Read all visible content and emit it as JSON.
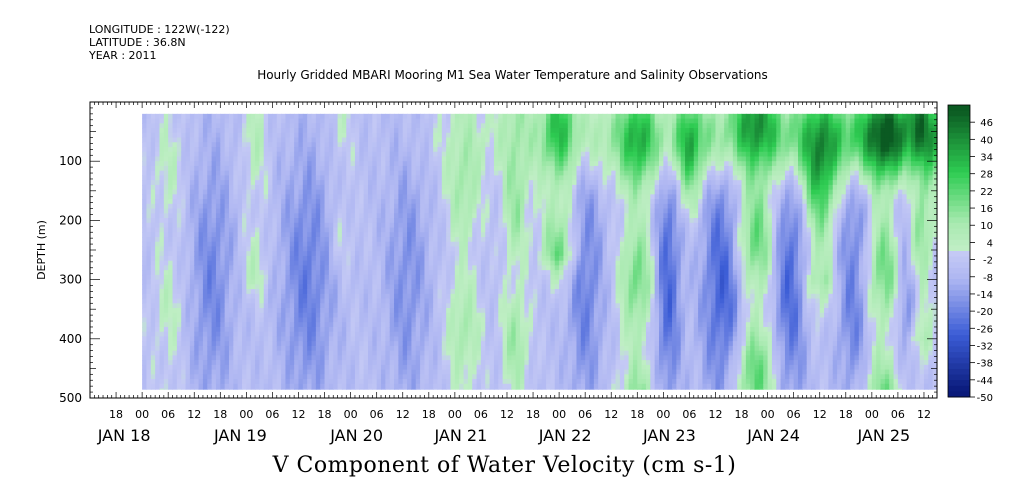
{
  "meta": {
    "longitude": "LONGITUDE : 122W(-122)",
    "latitude": "LATITUDE : 36.8N",
    "year": "YEAR : 2011"
  },
  "colors": {
    "strong_negative": "#0a1a7a",
    "negative": "#3b5cd6",
    "weak_negative": "#aeb6f2",
    "weak_positive": "#a8eab0",
    "positive": "#2ecc52",
    "strong_positive": "#0b5a22"
  },
  "chart_data": {
    "type": "heatmap",
    "title": "Hourly Gridded MBARI Mooring M1 Sea Water Temperature and Salinity Observations",
    "xlabel": "V Component of Water Velocity (cm s-1)",
    "ylabel": "DEPTH (m)",
    "y_axis": {
      "range": [
        0,
        500
      ],
      "inverted": true,
      "ticks": [
        100,
        200,
        300,
        400,
        500
      ]
    },
    "x_axis": {
      "range": [
        "JAN 17 12:00",
        "JAN 25 15:00"
      ],
      "hour_ticks": [
        "18",
        "00",
        "06",
        "12",
        "18",
        "00",
        "06",
        "12",
        "18",
        "00",
        "06",
        "12",
        "18",
        "00",
        "06",
        "12",
        "18",
        "00",
        "06",
        "12",
        "18",
        "00",
        "06",
        "12",
        "18",
        "00",
        "06",
        "12",
        "18",
        "00",
        "06",
        "12"
      ],
      "day_labels": [
        "JAN 18",
        "JAN 19",
        "JAN 20",
        "JAN 21",
        "JAN 22",
        "JAN 23",
        "JAN 24",
        "JAN 25"
      ]
    },
    "data_extent": {
      "time_start": "JAN 18 00:00",
      "time_end": "JAN 25 15:00",
      "depth_start": 20,
      "depth_end": 485
    },
    "colorbar": {
      "levels": [
        46,
        40,
        34,
        28,
        22,
        16,
        10,
        4,
        -2,
        -8,
        -14,
        -20,
        -26,
        -32,
        -38,
        -44,
        -50
      ],
      "range": [
        -50,
        52
      ]
    },
    "description": "V component of water velocity by time and depth. Surface layer (0-150 m) predominantly positive (green, 20-45 cm/s) from JAN 21 onward; alternating vertical bands of positive and negative velocity at depth; JAN 18-20 predominantly weak to moderate negative (blue)."
  }
}
